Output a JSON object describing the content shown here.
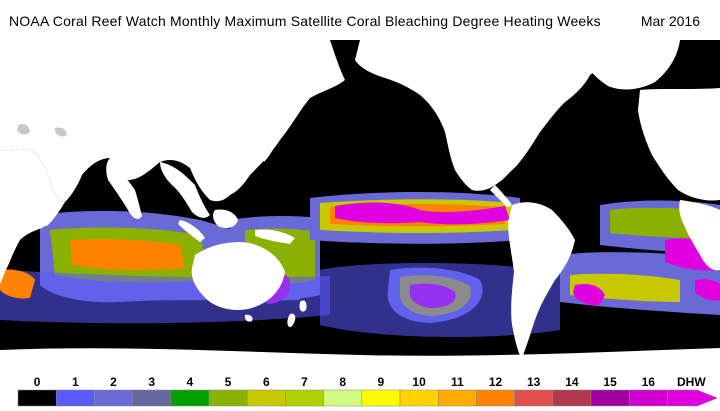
{
  "title": "NOAA Coral Reef Watch Monthly Maximum Satellite Coral Bleaching Degree Heating Weeks",
  "date": "Mar 2016",
  "legend": {
    "unit": "DHW",
    "ticks": [
      "0",
      "1",
      "2",
      "3",
      "4",
      "5",
      "6",
      "7",
      "8",
      "9",
      "10",
      "11",
      "12",
      "13",
      "14",
      "15",
      "16"
    ],
    "colors": [
      "#000000",
      "#5a5aff",
      "#6a6ad6",
      "#6868a0",
      "#00a000",
      "#8ab000",
      "#c8c800",
      "#aed200",
      "#d2fa82",
      "#fafa00",
      "#ffd200",
      "#ffaa00",
      "#ff8200",
      "#e05050",
      "#b0394f",
      "#a000a0",
      "#d000d0",
      "#e000e0"
    ]
  },
  "colors": {
    "ocean": "#000000",
    "land": "#ffffff",
    "low": "#5a5aff",
    "moderate": "#c8c800",
    "high": "#ff8200",
    "extreme": "#d000d0"
  }
}
